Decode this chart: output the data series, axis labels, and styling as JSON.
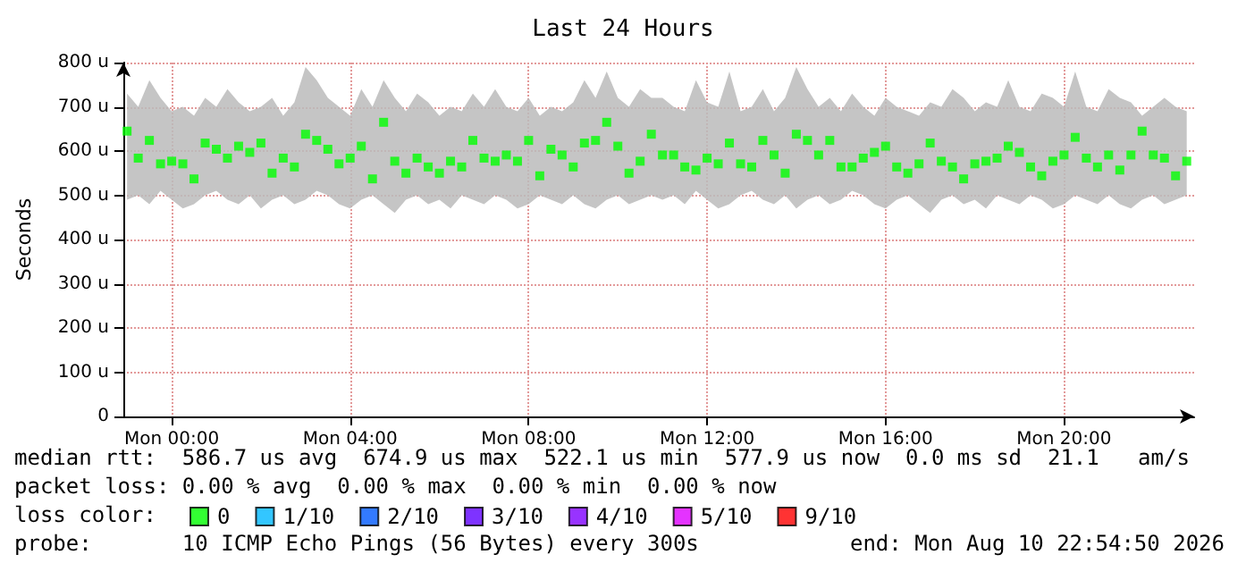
{
  "chart_data": {
    "type": "scatter",
    "title": "Last 24 Hours",
    "ylabel": "Seconds",
    "legend_title": "loss color:",
    "legend": "bottom",
    "marker": "square",
    "grid": true,
    "xlim": [
      "2026-08-09T22:55",
      "2026-08-10T22:55"
    ],
    "xticks": [
      {
        "value": "2026-08-10T00:00",
        "label": "Mon 00:00"
      },
      {
        "value": "2026-08-10T04:00",
        "label": "Mon 04:00"
      },
      {
        "value": "2026-08-10T08:00",
        "label": "Mon 08:00"
      },
      {
        "value": "2026-08-10T12:00",
        "label": "Mon 12:00"
      },
      {
        "value": "2026-08-10T16:00",
        "label": "Mon 16:00"
      },
      {
        "value": "2026-08-10T20:00",
        "label": "Mon 20:00"
      }
    ],
    "ylim": [
      0,
      800
    ],
    "yticks": [
      0,
      {
        "value": 100,
        "label": "100 u"
      },
      {
        "value": 200,
        "label": "200 u"
      },
      {
        "value": 300,
        "label": "300 u"
      },
      {
        "value": 400,
        "label": "400 u"
      },
      {
        "value": 500,
        "label": "500 u"
      },
      {
        "value": 600,
        "label": "600 u"
      },
      {
        "value": 700,
        "label": "700 u"
      },
      {
        "value": 800,
        "label": "800 u"
      }
    ],
    "x": [
      "2026-08-09T23:00",
      "2026-08-09T23:15",
      "2026-08-09T23:30",
      "2026-08-09T23:45",
      "2026-08-10T00:00",
      "2026-08-10T00:15",
      "2026-08-10T00:30",
      "2026-08-10T00:45",
      "2026-08-10T01:00",
      "2026-08-10T01:15",
      "2026-08-10T01:30",
      "2026-08-10T01:45",
      "2026-08-10T02:00",
      "2026-08-10T02:15",
      "2026-08-10T02:30",
      "2026-08-10T02:45",
      "2026-08-10T03:00",
      "2026-08-10T03:15",
      "2026-08-10T03:30",
      "2026-08-10T03:45",
      "2026-08-10T04:00",
      "2026-08-10T04:15",
      "2026-08-10T04:30",
      "2026-08-10T04:45",
      "2026-08-10T05:00",
      "2026-08-10T05:15",
      "2026-08-10T05:30",
      "2026-08-10T05:45",
      "2026-08-10T06:00",
      "2026-08-10T06:15",
      "2026-08-10T06:30",
      "2026-08-10T06:45",
      "2026-08-10T07:00",
      "2026-08-10T07:15",
      "2026-08-10T07:30",
      "2026-08-10T07:45",
      "2026-08-10T08:00",
      "2026-08-10T08:15",
      "2026-08-10T08:30",
      "2026-08-10T08:45",
      "2026-08-10T09:00",
      "2026-08-10T09:15",
      "2026-08-10T09:30",
      "2026-08-10T09:45",
      "2026-08-10T10:00",
      "2026-08-10T10:15",
      "2026-08-10T10:30",
      "2026-08-10T10:45",
      "2026-08-10T11:00",
      "2026-08-10T11:15",
      "2026-08-10T11:30",
      "2026-08-10T11:45",
      "2026-08-10T12:00",
      "2026-08-10T12:15",
      "2026-08-10T12:30",
      "2026-08-10T12:45",
      "2026-08-10T13:00",
      "2026-08-10T13:15",
      "2026-08-10T13:30",
      "2026-08-10T13:45",
      "2026-08-10T14:00",
      "2026-08-10T14:15",
      "2026-08-10T14:30",
      "2026-08-10T14:45",
      "2026-08-10T15:00",
      "2026-08-10T15:15",
      "2026-08-10T15:30",
      "2026-08-10T15:45",
      "2026-08-10T16:00",
      "2026-08-10T16:15",
      "2026-08-10T16:30",
      "2026-08-10T16:45",
      "2026-08-10T17:00",
      "2026-08-10T17:15",
      "2026-08-10T17:30",
      "2026-08-10T17:45",
      "2026-08-10T18:00",
      "2026-08-10T18:15",
      "2026-08-10T18:30",
      "2026-08-10T18:45",
      "2026-08-10T19:00",
      "2026-08-10T19:15",
      "2026-08-10T19:30",
      "2026-08-10T19:45",
      "2026-08-10T20:00",
      "2026-08-10T20:15",
      "2026-08-10T20:30",
      "2026-08-10T20:45",
      "2026-08-10T21:00",
      "2026-08-10T21:15",
      "2026-08-10T21:30",
      "2026-08-10T21:45",
      "2026-08-10T22:00",
      "2026-08-10T22:15",
      "2026-08-10T22:30",
      "2026-08-10T22:45"
    ],
    "series": [
      {
        "name": "0",
        "color": "#00ff00",
        "values": [
          645,
          584,
          624,
          571,
          577,
          571,
          537,
          618,
          604,
          584,
          611,
          597,
          618,
          550,
          584,
          564,
          638,
          624,
          604,
          571,
          584,
          611,
          537,
          665,
          577,
          550,
          584,
          564,
          550,
          577,
          564,
          624,
          584,
          577,
          591,
          577,
          624,
          544,
          604,
          591,
          564,
          618,
          624,
          665,
          611,
          550,
          577,
          638,
          591,
          591,
          564,
          557,
          584,
          571,
          618,
          571,
          564,
          624,
          591,
          550,
          638,
          624,
          591,
          624,
          564,
          564,
          584,
          597,
          611,
          564,
          550,
          571,
          618,
          577,
          564,
          537,
          571,
          577,
          584,
          611,
          597,
          564,
          544,
          577,
          591,
          631,
          584,
          564,
          591,
          557,
          591,
          645,
          591,
          584,
          544,
          577
        ],
        "lower": [
          490,
          500,
          480,
          510,
          490,
          470,
          480,
          500,
          510,
          490,
          480,
          500,
          470,
          490,
          500,
          480,
          490,
          510,
          500,
          480,
          470,
          490,
          500,
          480,
          460,
          490,
          500,
          480,
          490,
          470,
          500,
          490,
          480,
          500,
          490,
          470,
          480,
          500,
          490,
          480,
          500,
          480,
          470,
          490,
          500,
          480,
          490,
          500,
          490,
          500,
          480,
          510,
          490,
          470,
          480,
          500,
          510,
          490,
          480,
          500,
          470,
          490,
          500,
          480,
          490,
          510,
          500,
          480,
          470,
          490,
          500,
          480,
          460,
          490,
          500,
          480,
          490,
          470,
          500,
          490,
          480,
          500,
          490,
          470,
          480,
          500,
          490,
          480,
          500,
          480,
          470,
          490,
          500,
          480,
          490,
          500
        ],
        "upper": [
          730,
          700,
          760,
          720,
          690,
          700,
          680,
          720,
          700,
          740,
          710,
          690,
          700,
          720,
          680,
          710,
          790,
          760,
          720,
          700,
          680,
          740,
          700,
          760,
          720,
          690,
          730,
          710,
          680,
          700,
          690,
          730,
          700,
          740,
          700,
          690,
          720,
          680,
          700,
          690,
          710,
          760,
          720,
          780,
          720,
          700,
          740,
          720,
          720,
          700,
          690,
          760,
          710,
          700,
          780,
          690,
          700,
          740,
          690,
          720,
          790,
          740,
          700,
          720,
          690,
          730,
          700,
          680,
          720,
          700,
          690,
          680,
          710,
          700,
          740,
          720,
          690,
          710,
          700,
          760,
          700,
          690,
          730,
          720,
          700,
          780,
          700,
          690,
          740,
          720,
          710,
          680,
          700,
          720,
          700,
          690
        ]
      },
      {
        "name": "1/10",
        "color": "#00b8ff",
        "values": [
          null,
          null,
          null,
          null,
          null,
          null,
          null,
          null,
          null,
          null,
          null,
          null,
          null,
          null,
          null,
          null,
          null,
          null,
          null,
          null,
          null,
          null,
          null,
          null,
          null,
          null,
          null,
          null,
          null,
          null,
          null,
          null,
          null,
          null,
          null,
          null,
          null,
          null,
          null,
          null,
          null,
          null,
          null,
          null,
          null,
          null,
          null,
          null,
          null,
          null,
          null,
          null,
          null,
          null,
          null,
          null,
          null,
          null,
          null,
          null,
          null,
          null,
          null,
          null,
          null,
          null,
          null,
          null,
          null,
          null,
          null,
          null,
          null,
          null,
          null,
          null,
          null,
          null,
          null,
          null,
          null,
          null,
          null,
          null,
          null,
          null,
          null,
          null,
          null,
          null,
          null,
          null,
          null,
          null,
          null,
          null
        ]
      },
      {
        "name": "2/10",
        "color": "#0059ff",
        "values": [
          null,
          null,
          null,
          null,
          null,
          null,
          null,
          null,
          null,
          null,
          null,
          null,
          null,
          null,
          null,
          null,
          null,
          null,
          null,
          null,
          null,
          null,
          null,
          null,
          null,
          null,
          null,
          null,
          null,
          null,
          null,
          null,
          null,
          null,
          null,
          null,
          null,
          null,
          null,
          null,
          null,
          null,
          null,
          null,
          null,
          null,
          null,
          null,
          null,
          null,
          null,
          null,
          null,
          null,
          null,
          null,
          null,
          null,
          null,
          null,
          null,
          null,
          null,
          null,
          null,
          null,
          null,
          null,
          null,
          null,
          null,
          null,
          null,
          null,
          null,
          null,
          null,
          null,
          null,
          null,
          null,
          null,
          null,
          null,
          null,
          null,
          null,
          null,
          null,
          null,
          null,
          null,
          null,
          null,
          null,
          null
        ]
      },
      {
        "name": "3/10",
        "color": "#5e00ff",
        "values": [
          null,
          null,
          null,
          null,
          null,
          null,
          null,
          null,
          null,
          null,
          null,
          null,
          null,
          null,
          null,
          null,
          null,
          null,
          null,
          null,
          null,
          null,
          null,
          null,
          null,
          null,
          null,
          null,
          null,
          null,
          null,
          null,
          null,
          null,
          null,
          null,
          null,
          null,
          null,
          null,
          null,
          null,
          null,
          null,
          null,
          null,
          null,
          null,
          null,
          null,
          null,
          null,
          null,
          null,
          null,
          null,
          null,
          null,
          null,
          null,
          null,
          null,
          null,
          null,
          null,
          null,
          null,
          null,
          null,
          null,
          null,
          null,
          null,
          null,
          null,
          null,
          null,
          null,
          null,
          null,
          null,
          null,
          null,
          null,
          null,
          null,
          null,
          null,
          null,
          null,
          null,
          null,
          null,
          null,
          null,
          null
        ]
      },
      {
        "name": "4/10",
        "color": "#7e00ff",
        "values": [
          null,
          null,
          null,
          null,
          null,
          null,
          null,
          null,
          null,
          null,
          null,
          null,
          null,
          null,
          null,
          null,
          null,
          null,
          null,
          null,
          null,
          null,
          null,
          null,
          null,
          null,
          null,
          null,
          null,
          null,
          null,
          null,
          null,
          null,
          null,
          null,
          null,
          null,
          null,
          null,
          null,
          null,
          null,
          null,
          null,
          null,
          null,
          null,
          null,
          null,
          null,
          null,
          null,
          null,
          null,
          null,
          null,
          null,
          null,
          null,
          null,
          null,
          null,
          null,
          null,
          null,
          null,
          null,
          null,
          null,
          null,
          null,
          null,
          null,
          null,
          null,
          null,
          null,
          null,
          null,
          null,
          null,
          null,
          null,
          null,
          null,
          null,
          null,
          null,
          null,
          null,
          null,
          null,
          null,
          null,
          null
        ]
      },
      {
        "name": "5/10",
        "color": "#dd00ff",
        "values": [
          null,
          null,
          null,
          null,
          null,
          null,
          null,
          null,
          null,
          null,
          null,
          null,
          null,
          null,
          null,
          null,
          null,
          null,
          null,
          null,
          null,
          null,
          null,
          null,
          null,
          null,
          null,
          null,
          null,
          null,
          null,
          null,
          null,
          null,
          null,
          null,
          null,
          null,
          null,
          null,
          null,
          null,
          null,
          null,
          null,
          null,
          null,
          null,
          null,
          null,
          null,
          null,
          null,
          null,
          null,
          null,
          null,
          null,
          null,
          null,
          null,
          null,
          null,
          null,
          null,
          null,
          null,
          null,
          null,
          null,
          null,
          null,
          null,
          null,
          null,
          null,
          null,
          null,
          null,
          null,
          null,
          null,
          null,
          null,
          null,
          null,
          null,
          null,
          null,
          null,
          null,
          null,
          null,
          null,
          null,
          null
        ]
      },
      {
        "name": "9/10",
        "color": "#ff0000",
        "values": [
          null,
          null,
          null,
          null,
          null,
          null,
          null,
          null,
          null,
          null,
          null,
          null,
          null,
          null,
          null,
          null,
          null,
          null,
          null,
          null,
          null,
          null,
          null,
          null,
          null,
          null,
          null,
          null,
          null,
          null,
          null,
          null,
          null,
          null,
          null,
          null,
          null,
          null,
          null,
          null,
          null,
          null,
          null,
          null,
          null,
          null,
          null,
          null,
          null,
          null,
          null,
          null,
          null,
          null,
          null,
          null,
          null,
          null,
          null,
          null,
          null,
          null,
          null,
          null,
          null,
          null,
          null,
          null,
          null,
          null,
          null,
          null,
          null,
          null,
          null,
          null,
          null,
          null,
          null,
          null,
          null,
          null,
          null,
          null,
          null,
          null,
          null,
          null,
          null,
          null,
          null,
          null,
          null,
          null,
          null,
          null
        ]
      }
    ],
    "annotations": [
      "median rtt:  586.7 us avg  674.9 us max  522.1 us min  577.9 us now  0.0 ms sd  21.1   am/s",
      "packet loss: 0.00 % avg  0.00 % max  0.00 % min  0.00 % now",
      "probe:       10 ICMP Echo Pings (56 Bytes) every 300s",
      "end: Mon Aug 10 22:54:50 2026"
    ]
  }
}
